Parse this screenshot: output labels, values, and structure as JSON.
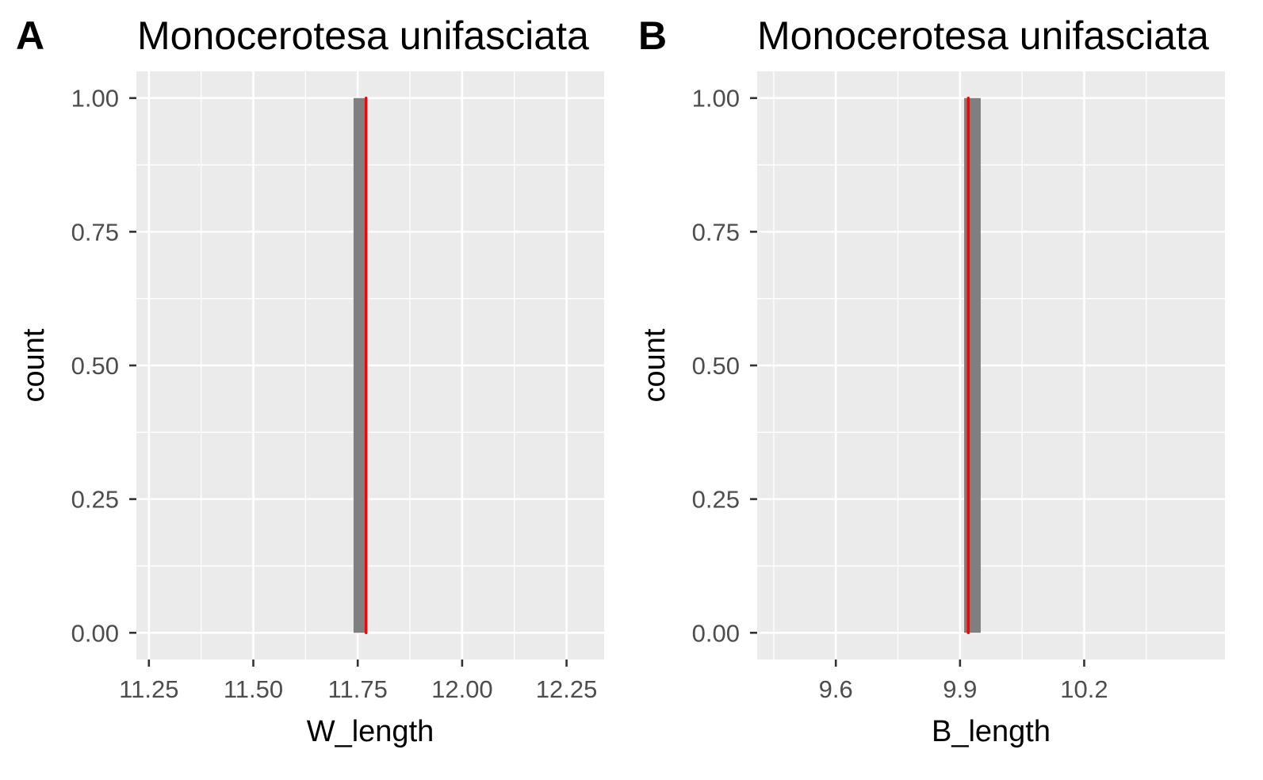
{
  "chart_data": [
    {
      "type": "bar",
      "panel_tag": "A",
      "title": "Monocerotesa unifasciata",
      "xlabel": "W_length",
      "ylabel": "count",
      "grid": true,
      "xlim": [
        11.22,
        12.34
      ],
      "ylim": [
        -0.05,
        1.05
      ],
      "xticks": [
        11.25,
        11.5,
        11.75,
        12.0,
        12.25
      ],
      "xtick_labels": [
        "11.25",
        "11.50",
        "11.75",
        "12.00",
        "12.25"
      ],
      "yticks": [
        0,
        0.25,
        0.5,
        0.75,
        1.0
      ],
      "ytick_labels": [
        "0.00",
        "0.25",
        "0.50",
        "0.75",
        "1.00"
      ],
      "bars": [
        {
          "x_start": 11.74,
          "x_end": 11.77,
          "count": 1
        }
      ],
      "bar_color": "#7f7f7f",
      "reference_line": {
        "x": 11.77,
        "color": "#ff0000"
      }
    },
    {
      "type": "bar",
      "panel_tag": "B",
      "title": "Monocerotesa unifasciata",
      "xlabel": "B_length",
      "ylabel": "count",
      "grid": true,
      "xlim": [
        9.41,
        10.54
      ],
      "ylim": [
        -0.05,
        1.05
      ],
      "xticks": [
        9.6,
        9.9,
        10.2
      ],
      "xtick_labels": [
        "9.6",
        "9.9",
        "10.2"
      ],
      "yticks": [
        0,
        0.25,
        0.5,
        0.75,
        1.0
      ],
      "ytick_labels": [
        "0.00",
        "0.25",
        "0.50",
        "0.75",
        "1.00"
      ],
      "bars": [
        {
          "x_start": 9.91,
          "x_end": 9.95,
          "count": 1
        }
      ],
      "bar_color": "#7f7f7f",
      "reference_line": {
        "x": 9.92,
        "color": "#ff0000"
      }
    }
  ]
}
